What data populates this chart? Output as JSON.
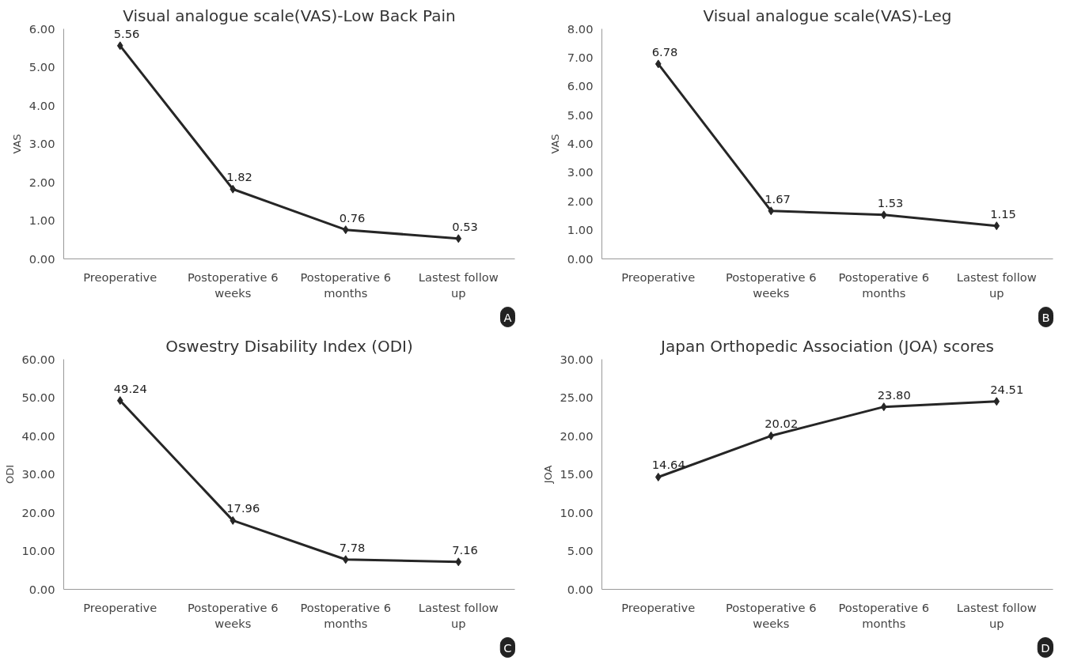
{
  "chart_data": [
    {
      "type": "line",
      "title": "Visual analogue scale(VAS)-Low Back Pain",
      "ylabel": "VAS",
      "categories": [
        "Preoperative",
        "Postoperative 6 weeks",
        "Postoperative 6 months",
        "Lastest follow up"
      ],
      "series": [
        {
          "color": "#262626",
          "values": [
            5.56,
            1.82,
            0.76,
            0.53
          ]
        }
      ],
      "ylim": [
        0,
        6
      ],
      "yticks": [
        {
          "value": 0,
          "label": "0.00"
        },
        {
          "value": 1,
          "label": "1.00"
        },
        {
          "value": 2,
          "label": "2.00"
        },
        {
          "value": 3,
          "label": "3.00"
        },
        {
          "value": 4,
          "label": "4.00"
        },
        {
          "value": 5,
          "label": "5.00"
        },
        {
          "value": 6,
          "label": "6.00"
        }
      ],
      "data_labels": true,
      "marker": "diamond",
      "grid": false,
      "annotations": [
        "A"
      ]
    },
    {
      "type": "line",
      "title": "Visual analogue scale(VAS)-Leg",
      "ylabel": "VAS",
      "categories": [
        "Preoperative",
        "Postoperative 6 weeks",
        "Postoperative 6 months",
        "Lastest follow up"
      ],
      "series": [
        {
          "color": "#262626",
          "values": [
            6.78,
            1.67,
            1.53,
            1.15
          ]
        }
      ],
      "ylim": [
        0,
        8
      ],
      "yticks": [
        {
          "value": 0,
          "label": "0.00"
        },
        {
          "value": 1,
          "label": "1.00"
        },
        {
          "value": 2,
          "label": "2.00"
        },
        {
          "value": 3,
          "label": "3.00"
        },
        {
          "value": 4,
          "label": "4.00"
        },
        {
          "value": 5,
          "label": "5.00"
        },
        {
          "value": 6,
          "label": "6.00"
        },
        {
          "value": 7,
          "label": "7.00"
        },
        {
          "value": 8,
          "label": "8.00"
        }
      ],
      "data_labels": true,
      "marker": "diamond",
      "grid": false,
      "annotations": [
        "B"
      ]
    },
    {
      "type": "line",
      "title": "Oswestry Disability Index (ODI)",
      "ylabel": "ODI",
      "categories": [
        "Preoperative",
        "Postoperative 6 weeks",
        "Postoperative 6 months",
        "Lastest follow up"
      ],
      "series": [
        {
          "color": "#262626",
          "values": [
            49.24,
            17.96,
            7.78,
            7.16
          ]
        }
      ],
      "ylim": [
        0,
        60
      ],
      "yticks": [
        {
          "value": 0,
          "label": "0.00"
        },
        {
          "value": 10,
          "label": "10.00"
        },
        {
          "value": 20,
          "label": "20.00"
        },
        {
          "value": 30,
          "label": "30.00"
        },
        {
          "value": 40,
          "label": "40.00"
        },
        {
          "value": 50,
          "label": "50.00"
        },
        {
          "value": 60,
          "label": "60.00"
        }
      ],
      "data_labels": true,
      "marker": "diamond",
      "grid": false,
      "annotations": [
        "C"
      ]
    },
    {
      "type": "line",
      "title": "Japan Orthopedic Association (JOA) scores",
      "ylabel": "JOA",
      "categories": [
        "Preoperative",
        "Postoperative 6 weeks",
        "Postoperative 6 months",
        "Lastest follow up"
      ],
      "series": [
        {
          "color": "#262626",
          "values": [
            14.64,
            20.02,
            23.8,
            24.51
          ]
        }
      ],
      "ylim": [
        0,
        30
      ],
      "yticks": [
        {
          "value": 0,
          "label": "0.00"
        },
        {
          "value": 5,
          "label": "5.00"
        },
        {
          "value": 10,
          "label": "10.00"
        },
        {
          "value": 15,
          "label": "15.00"
        },
        {
          "value": 20,
          "label": "20.00"
        },
        {
          "value": 25,
          "label": "25.00"
        },
        {
          "value": 30,
          "label": "30.00"
        }
      ],
      "value_labels": [
        "14.64",
        "20.02",
        "23.80",
        "24.51"
      ],
      "marker": "diamond",
      "grid": false,
      "annotations": [
        "D"
      ]
    }
  ]
}
